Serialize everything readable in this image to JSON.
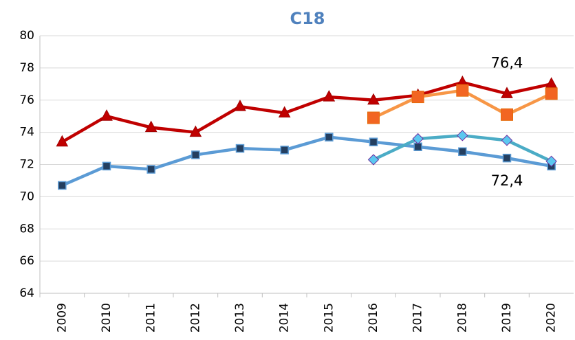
{
  "chart_data": {
    "type": "line",
    "title": "C18",
    "categories": [
      "2009",
      "2010",
      "2011",
      "2012",
      "2013",
      "2014",
      "2015",
      "2016",
      "2017",
      "2018",
      "2019",
      "2020"
    ],
    "series": [
      {
        "color": "#c00000",
        "marker": "triangle",
        "values": [
          73.4,
          75.0,
          74.3,
          74.0,
          75.6,
          75.2,
          76.2,
          76.0,
          76.3,
          77.1,
          76.4,
          77.0
        ],
        "value_labels": [
          null,
          null,
          null,
          null,
          null,
          null,
          null,
          null,
          null,
          null,
          "76,4",
          null
        ]
      },
      {
        "color": "#5b9bd5",
        "marker": "square",
        "values": [
          70.7,
          71.9,
          71.7,
          72.6,
          73.0,
          72.9,
          73.7,
          73.4,
          73.1,
          72.8,
          72.4,
          71.9
        ],
        "value_labels": [
          null,
          null,
          null,
          null,
          null,
          null,
          null,
          null,
          null,
          null,
          "72,4",
          null
        ]
      },
      {
        "color": "#f79646",
        "marker": "big-square",
        "values": [
          null,
          null,
          null,
          null,
          null,
          null,
          null,
          74.9,
          76.2,
          76.6,
          75.1,
          76.4
        ]
      },
      {
        "color": "#4bacc6",
        "marker": "diamond",
        "values": [
          null,
          null,
          null,
          null,
          null,
          null,
          null,
          72.3,
          73.6,
          73.8,
          73.5,
          72.2
        ]
      }
    ],
    "ylim": [
      64,
      80
    ],
    "yticks": [
      64,
      66,
      68,
      70,
      72,
      74,
      76,
      78,
      80
    ],
    "grid": true
  }
}
